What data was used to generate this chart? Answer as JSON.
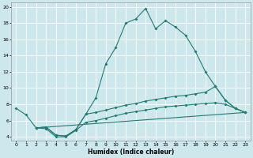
{
  "xlabel": "Humidex (Indice chaleur)",
  "bg_color": "#cce8ec",
  "grid_color": "#ffffff",
  "line_color": "#1e7d72",
  "xlim": [
    -0.5,
    23.5
  ],
  "ylim": [
    3.5,
    20.5
  ],
  "xticks": [
    0,
    1,
    2,
    3,
    4,
    5,
    6,
    7,
    8,
    9,
    10,
    11,
    12,
    13,
    14,
    15,
    16,
    17,
    18,
    19,
    20,
    21,
    22,
    23
  ],
  "yticks": [
    4,
    6,
    8,
    10,
    12,
    14,
    16,
    18,
    20
  ],
  "line1_x": [
    0,
    1,
    2,
    3,
    4,
    5,
    6,
    7,
    8,
    9,
    10,
    11,
    12,
    13,
    14,
    15,
    16,
    17,
    18,
    19,
    20,
    21,
    22,
    23
  ],
  "line1_y": [
    7.5,
    6.7,
    5.1,
    5.2,
    4.2,
    4.1,
    4.9,
    6.8,
    8.8,
    13.0,
    15.0,
    18.0,
    18.5,
    19.8,
    17.3,
    18.3,
    17.5,
    16.5,
    14.5,
    12.0,
    10.2,
    8.5,
    7.5,
    7.0
  ],
  "line2_x": [
    2,
    3,
    4,
    5,
    6,
    7,
    8,
    9,
    10,
    11,
    12,
    13,
    14,
    15,
    16,
    17,
    18,
    19,
    20,
    21,
    22,
    23
  ],
  "line2_y": [
    5.1,
    5.2,
    4.2,
    4.1,
    4.9,
    6.8,
    7.0,
    7.3,
    7.6,
    7.9,
    8.1,
    8.4,
    8.6,
    8.8,
    9.0,
    9.1,
    9.3,
    9.5,
    10.2,
    8.5,
    7.5,
    7.0
  ],
  "line3_x": [
    2,
    3,
    4,
    5,
    6,
    7,
    8,
    9,
    10,
    11,
    12,
    13,
    14,
    15,
    16,
    17,
    18,
    19,
    20,
    21,
    22,
    23
  ],
  "line3_y": [
    5.1,
    5.0,
    4.0,
    4.0,
    4.8,
    5.8,
    6.0,
    6.3,
    6.6,
    6.9,
    7.1,
    7.3,
    7.5,
    7.7,
    7.8,
    7.9,
    8.0,
    8.1,
    8.2,
    8.0,
    7.5,
    7.0
  ],
  "line4_x": [
    2,
    23
  ],
  "line4_y": [
    5.1,
    7.0
  ]
}
